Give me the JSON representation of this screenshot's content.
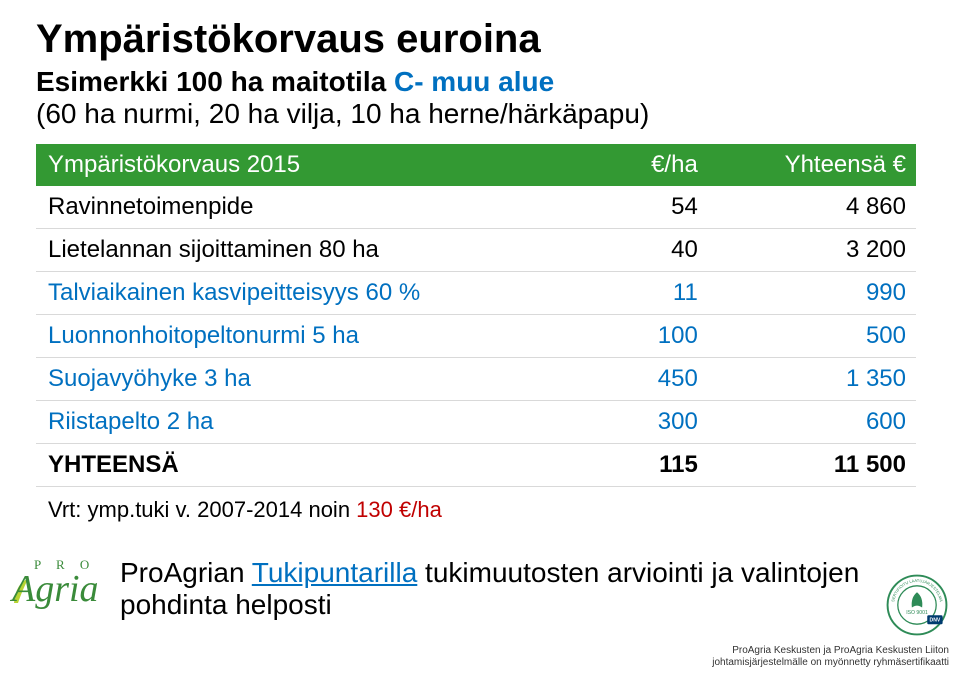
{
  "header": {
    "title": "Ympäristökorvaus euroina",
    "subtitle_lead": "Esimerkki 100 ha maitotila ",
    "subtitle_blue": "C- muu alue",
    "subtitle2": "(60 ha nurmi, 20 ha vilja, 10 ha herne/härkäpapu)"
  },
  "table": {
    "header_bg": "#339933",
    "header_color": "#ffffff",
    "row_border": "#d9d9d9",
    "highlight_color": "#0070c0",
    "columns": [
      "Ympäristökorvaus 2015",
      "€/ha",
      "Yhteensä €"
    ],
    "col_align": [
      "left",
      "right",
      "right"
    ],
    "rows": [
      {
        "label": "Ravinnetoimenpide",
        "perha": "54",
        "total": "4 860",
        "highlight": false
      },
      {
        "label": "Lietelannan sijoittaminen 80 ha",
        "perha": "40",
        "total": "3 200",
        "highlight": false
      },
      {
        "label": "Talviaikainen kasvipeitteisyys 60 %",
        "perha": "11",
        "total": "990",
        "highlight": true
      },
      {
        "label": "Luonnonhoitopeltonurmi 5 ha",
        "perha": "100",
        "total": "500",
        "highlight": true
      },
      {
        "label": "Suojavyöhyke 3 ha",
        "perha": "450",
        "total": "1 350",
        "highlight": true
      },
      {
        "label": "Riistapelto 2 ha",
        "perha": "300",
        "total": "600",
        "highlight": true
      }
    ],
    "summary": {
      "label": "YHTEENSÄ",
      "perha": "115",
      "total": "11 500"
    },
    "vrt_lead": "Vrt: ymp.tuki v. 2007-2014 noin ",
    "vrt_red": "130 €/ha"
  },
  "footer": {
    "lead": "ProAgrian ",
    "link_text": "Tukipuntarilla",
    "tail": " tukimuutosten arviointi ja valintojen pohdinta helposti"
  },
  "logo": {
    "pro": "P R O",
    "agria": "Agria",
    "leaf_color": "#b7d433"
  },
  "badge": {
    "ring_color": "#2e8b57",
    "text_top": "SERTIFIOITU",
    "text_bottom": "LAATUJÄRJESTELMÄ",
    "iso": "ISO 9001",
    "dnv": "DNV"
  },
  "fineprint": {
    "line1": "ProAgria Keskusten ja ProAgria Keskusten Liiton",
    "line2": "johtamisjärjestelmälle on myönnetty ryhmäsertifikaatti"
  }
}
